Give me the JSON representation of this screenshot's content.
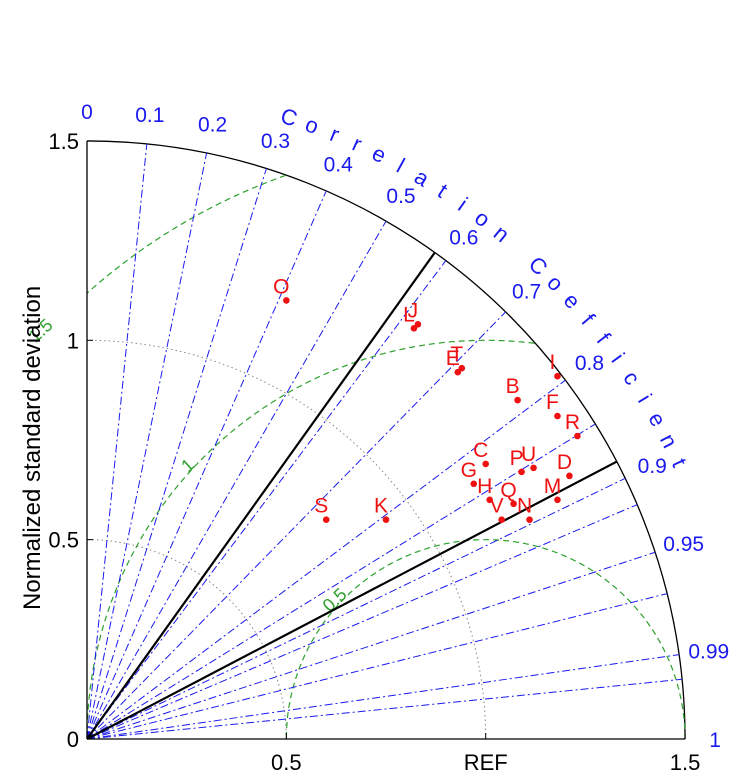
{
  "chart_data": {
    "type": "scatter",
    "subtype": "taylor-diagram",
    "ylabel": "Normalized standard deviation",
    "angular_label": "Correlation Coefficient",
    "reference_label": "REF",
    "reference_std": 1.0,
    "rlim": [
      0,
      1.5
    ],
    "radial_ticks": [
      {
        "value": 0,
        "label": "0"
      },
      {
        "value": 0.5,
        "label": "0.5"
      },
      {
        "value": 1,
        "label": "1"
      },
      {
        "value": 1.5,
        "label": "1.5"
      }
    ],
    "x_tick_labels": [
      {
        "value": 0.5,
        "label": "0.5"
      },
      {
        "value": 1.0,
        "label": "REF"
      },
      {
        "value": 1.5,
        "label": "1.5"
      }
    ],
    "correlation_ticks": [
      {
        "value": 0,
        "label": "0"
      },
      {
        "value": 0.1,
        "label": "0.1"
      },
      {
        "value": 0.2,
        "label": "0.2"
      },
      {
        "value": 0.3,
        "label": "0.3"
      },
      {
        "value": 0.4,
        "label": "0.4"
      },
      {
        "value": 0.5,
        "label": "0.5"
      },
      {
        "value": 0.6,
        "label": "0.6"
      },
      {
        "value": 0.7,
        "label": "0.7"
      },
      {
        "value": 0.8,
        "label": "0.8"
      },
      {
        "value": 0.9,
        "label": "0.9"
      },
      {
        "value": 0.95,
        "label": "0.95"
      },
      {
        "value": 0.99,
        "label": "0.99"
      },
      {
        "value": 1,
        "label": "1"
      }
    ],
    "extra_correlation_lines": [
      0.85,
      0.92,
      0.97,
      0.995
    ],
    "highlight_correlation_lines": [
      0.5816,
      0.8859
    ],
    "std_circles": [
      0.5,
      1.0,
      1.5
    ],
    "rmsd_contours": [
      {
        "value": 0.5,
        "label": "0.5"
      },
      {
        "value": 1.0,
        "label": "1"
      },
      {
        "value": 1.5,
        "label": "1.5"
      }
    ],
    "points": [
      {
        "label": "O",
        "x": 0.5,
        "y": 1.1
      },
      {
        "label": "L",
        "x": 0.82,
        "y": 1.03
      },
      {
        "label": "J",
        "x": 0.83,
        "y": 1.04
      },
      {
        "label": "E",
        "x": 0.93,
        "y": 0.92
      },
      {
        "label": "T",
        "x": 0.94,
        "y": 0.93
      },
      {
        "label": "I",
        "x": 1.18,
        "y": 0.91
      },
      {
        "label": "B",
        "x": 1.08,
        "y": 0.85
      },
      {
        "label": "F",
        "x": 1.18,
        "y": 0.81
      },
      {
        "label": "R",
        "x": 1.23,
        "y": 0.76
      },
      {
        "label": "C",
        "x": 1.0,
        "y": 0.69
      },
      {
        "label": "U",
        "x": 1.12,
        "y": 0.68
      },
      {
        "label": "P",
        "x": 1.09,
        "y": 0.67
      },
      {
        "label": "D",
        "x": 1.21,
        "y": 0.66
      },
      {
        "label": "G",
        "x": 0.97,
        "y": 0.64
      },
      {
        "label": "H",
        "x": 1.01,
        "y": 0.6
      },
      {
        "label": "Q",
        "x": 1.07,
        "y": 0.59
      },
      {
        "label": "M",
        "x": 1.18,
        "y": 0.6
      },
      {
        "label": "S",
        "x": 0.6,
        "y": 0.55
      },
      {
        "label": "K",
        "x": 0.75,
        "y": 0.55
      },
      {
        "label": "V",
        "x": 1.04,
        "y": 0.55
      },
      {
        "label": "N",
        "x": 1.11,
        "y": 0.55
      }
    ],
    "colors": {
      "correlation": "#1a1aee",
      "rmsd": "#2ca02c",
      "points": "#ee1111",
      "axes": "#000000",
      "std_grid": "#888888"
    }
  }
}
